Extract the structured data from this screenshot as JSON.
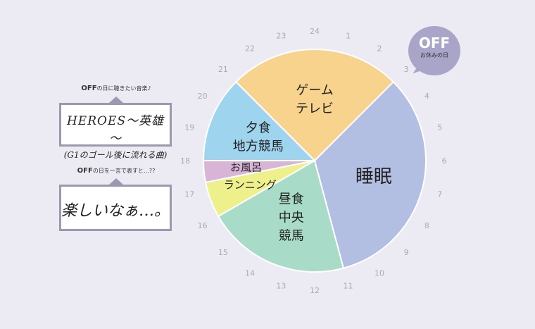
{
  "questions": [
    {
      "title_bold": "OFF",
      "title_rest": "の日に聴きたい音楽♪",
      "answer_lines": [
        "HEROES～英雄～",
        "(G1のゴール後に流れる曲)"
      ]
    },
    {
      "title_bold": "OFF",
      "title_rest": "の日を一言で表すと…??",
      "answer_lines": [
        "楽しいなぁ…。"
      ]
    }
  ],
  "badge": {
    "title": "OFF",
    "subtitle": "お休みの日"
  },
  "colors": {
    "background": "#ecebf4",
    "badge": "#a8a5c9",
    "box_border": "#9b99b0",
    "hour_label": "#aaaab4"
  },
  "chart_data": {
    "type": "pie",
    "unit": "hour",
    "clock_hours": [
      "24",
      "1",
      "2",
      "3",
      "4",
      "5",
      "6",
      "7",
      "8",
      "9",
      "10",
      "11",
      "12",
      "13",
      "14",
      "15",
      "16",
      "17",
      "18",
      "19",
      "20",
      "21",
      "22",
      "23"
    ],
    "slices": [
      {
        "label_lines": [
          "ゲーム",
          "テレビ"
        ],
        "start": 21,
        "end": 27,
        "color": "#f8d38e"
      },
      {
        "label_lines": [
          "睡眠"
        ],
        "start": 3,
        "end": 11,
        "color": "#b2bee2"
      },
      {
        "label_lines": [
          "昼食",
          "中央",
          "競馬"
        ],
        "start": 11,
        "end": 16,
        "color": "#a8dcc9"
      },
      {
        "label_lines": [
          "ランニング"
        ],
        "start": 16,
        "end": 17.25,
        "color": "#eef08c"
      },
      {
        "label_lines": [
          "お風呂"
        ],
        "start": 17.25,
        "end": 18,
        "color": "#d8b5d6"
      },
      {
        "label_lines": [
          "夕食",
          "地方競馬"
        ],
        "start": 18,
        "end": 21,
        "color": "#9fd4ef"
      }
    ]
  }
}
